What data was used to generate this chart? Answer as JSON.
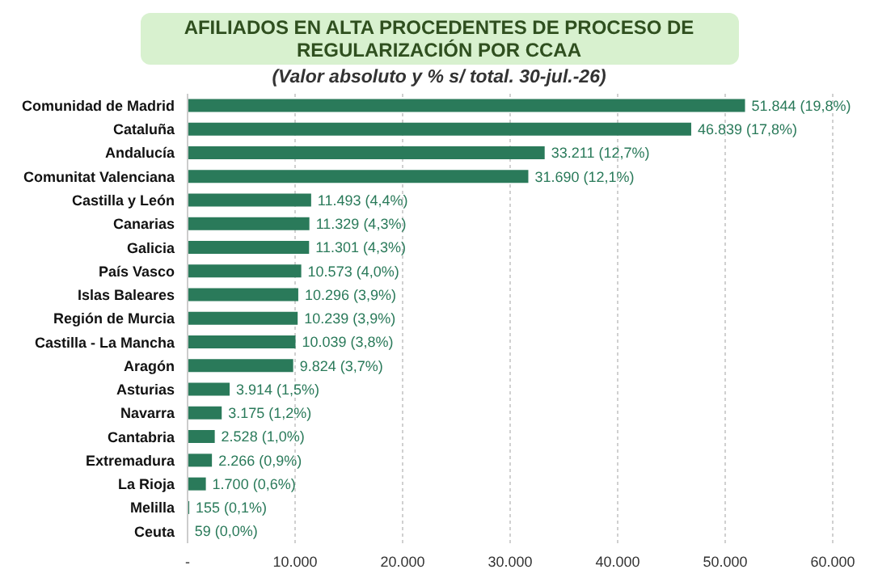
{
  "chart_data": {
    "type": "bar",
    "orientation": "horizontal",
    "title": "AFILIADOS EN ALTA PROCEDENTES DE PROCESO DE REGULARIZACIÓN POR CCAA",
    "subtitle": "(Valor absoluto y % s/ total.  30-jul.-26)",
    "categories": [
      "Comunidad de Madrid",
      "Cataluña",
      "Andalucía",
      "Comunitat Valenciana",
      "Castilla y León",
      "Canarias",
      "Galicia",
      "País Vasco",
      "Islas Baleares",
      "Región de Murcia",
      "Castilla - La Mancha",
      "Aragón",
      "Asturias",
      "Navarra",
      "Cantabria",
      "Extremadura",
      "La Rioja",
      "Melilla",
      "Ceuta"
    ],
    "values": [
      51844,
      46839,
      33211,
      31690,
      11493,
      11329,
      11301,
      10573,
      10296,
      10239,
      10039,
      9824,
      3914,
      3175,
      2528,
      2266,
      1700,
      155,
      59
    ],
    "value_labels": [
      "51.844 (19,8%)",
      "46.839 (17,8%)",
      "33.211 (12,7%)",
      "31.690 (12,1%)",
      "11.493 (4,4%)",
      "11.329 (4,3%)",
      "11.301 (4,3%)",
      "10.573 (4,0%)",
      "10.296 (3,9%)",
      "10.239 (3,9%)",
      "10.039 (3,8%)",
      "9.824 (3,7%)",
      "3.914 (1,5%)",
      "3.175 (1,2%)",
      "2.528 (1,0%)",
      "2.266 (0,9%)",
      "1.700 (0,6%)",
      "155 (0,1%)",
      "59 (0,0%)"
    ],
    "color": "#2a7a5a",
    "xlim": [
      0,
      60000
    ],
    "xticks": [
      {
        "value": 0,
        "label": "-"
      },
      {
        "value": 10000,
        "label": "10.000"
      },
      {
        "value": 20000,
        "label": "20.000"
      },
      {
        "value": 30000,
        "label": "30.000"
      },
      {
        "value": 40000,
        "label": "40.000"
      },
      {
        "value": 50000,
        "label": "50.000"
      },
      {
        "value": 60000,
        "label": "60.000"
      }
    ],
    "grid": "x"
  }
}
